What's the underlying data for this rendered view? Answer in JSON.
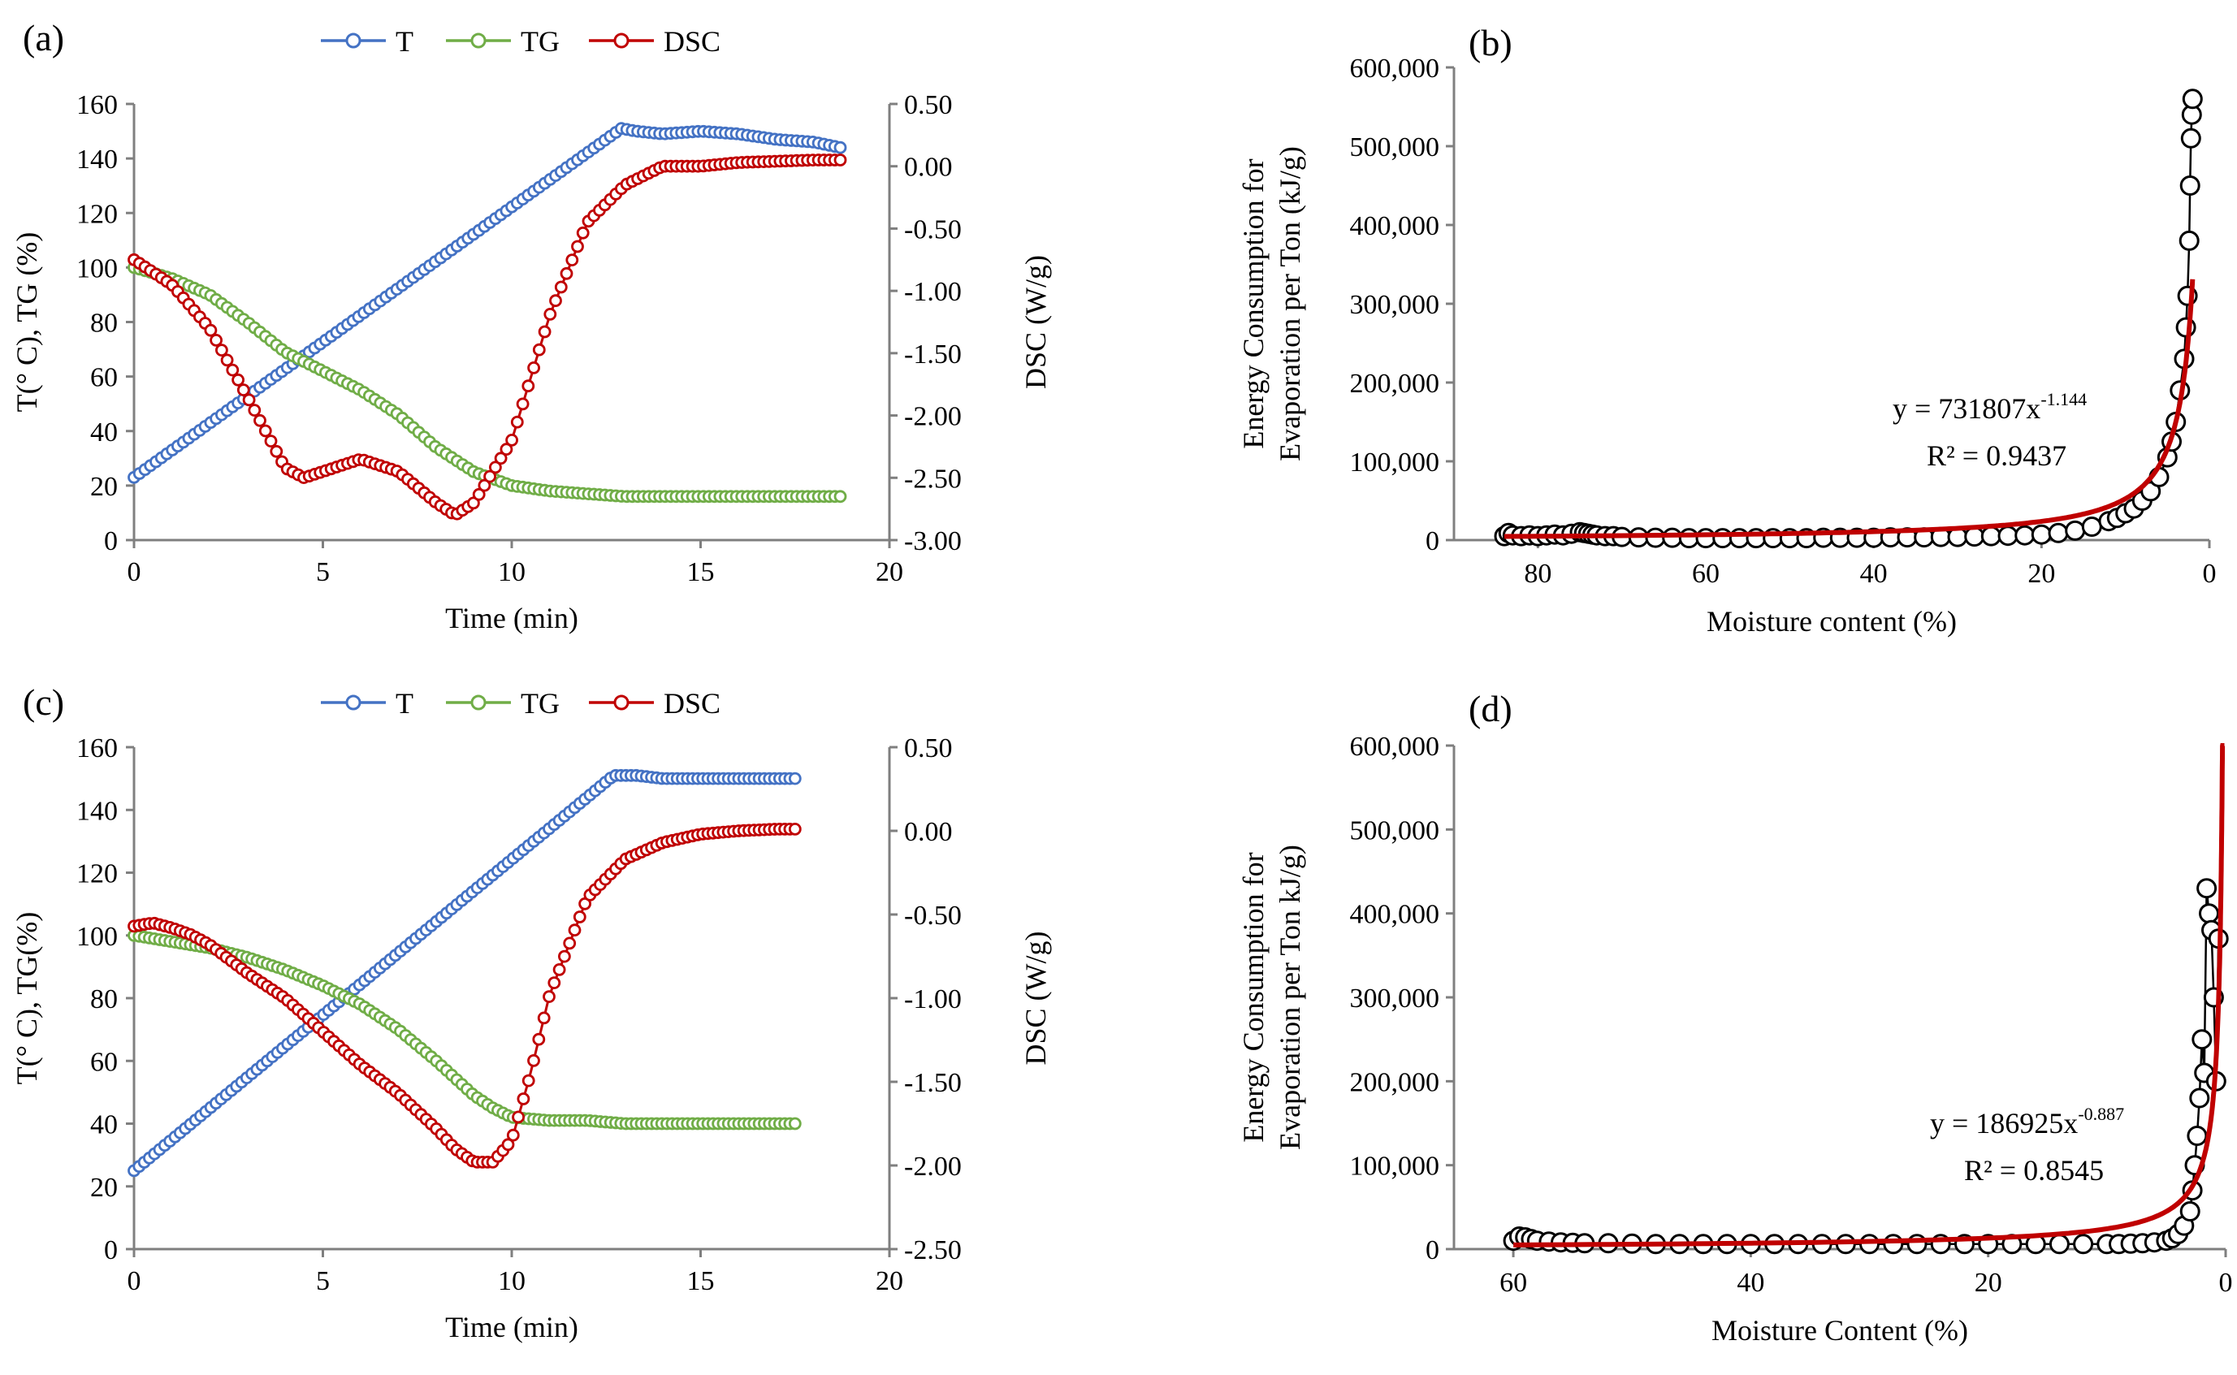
{
  "chart_data": [
    {
      "type": "line",
      "panel_label": "(a)",
      "legend": [
        "T",
        "TG",
        "DSC"
      ],
      "xlabel": "Time (min)",
      "ylabel_left": "T(° C), TG (%)",
      "ylabel_right": "DSC (W/g)",
      "xlim": [
        0,
        20
      ],
      "ylim_left": [
        0,
        160
      ],
      "ylim_right": [
        -3.0,
        0.5
      ],
      "x_ticks": [
        "0",
        "5",
        "10",
        "15",
        "20"
      ],
      "y_left_ticks": [
        "0",
        "20",
        "40",
        "60",
        "80",
        "100",
        "120",
        "140",
        "160"
      ],
      "y_right_ticks": [
        "-3.00",
        "-2.50",
        "-2.00",
        "-1.50",
        "-1.00",
        "-0.50",
        "0.00",
        "0.50"
      ],
      "colors": {
        "T": "#4472c4",
        "TG": "#70ad47",
        "DSC": "#c00000"
      },
      "series": [
        {
          "name": "T",
          "axis": "left",
          "x": [
            0,
            12.9,
            13.3,
            14,
            15,
            16,
            17,
            18,
            18.7
          ],
          "y": [
            23,
            151,
            150,
            149,
            150,
            149,
            147,
            146,
            144
          ]
        },
        {
          "name": "TG",
          "axis": "left",
          "x": [
            0,
            1,
            2,
            3,
            4,
            5,
            6,
            7,
            8,
            9,
            10,
            11,
            12,
            13,
            15,
            18.7
          ],
          "y": [
            100,
            96,
            90,
            80,
            69,
            62,
            55,
            46,
            34,
            25,
            20,
            18,
            17,
            16,
            16,
            16
          ]
        },
        {
          "name": "DSC",
          "axis": "right",
          "x": [
            0,
            1,
            2,
            3,
            4,
            4.5,
            5,
            6,
            7,
            8,
            8.5,
            9,
            10,
            11,
            12,
            13,
            14,
            15,
            16,
            17,
            18,
            18.7
          ],
          "y": [
            -0.75,
            -0.95,
            -1.3,
            -1.85,
            -2.42,
            -2.5,
            -2.45,
            -2.35,
            -2.45,
            -2.7,
            -2.8,
            -2.7,
            -2.2,
            -1.2,
            -0.45,
            -0.15,
            0.0,
            0.0,
            0.03,
            0.04,
            0.05,
            0.05
          ]
        }
      ]
    },
    {
      "type": "scatter",
      "panel_label": "(b)",
      "xlabel": "Moisture content (%)",
      "ylabel_line1": "Energy Consumption for",
      "ylabel_line2": "Evaporation per Ton (kJ/g)",
      "x_reversed": true,
      "xlim": [
        90,
        0
      ],
      "ylim": [
        0,
        600000
      ],
      "x_ticks": [
        "80",
        "60",
        "40",
        "20",
        "0"
      ],
      "y_ticks": [
        "0",
        "100,000",
        "200,000",
        "300,000",
        "400,000",
        "500,000",
        "600,000"
      ],
      "equation_main": "y = 731807x",
      "equation_exp": "-1.144",
      "r2": "R² = 0.9437",
      "fit": {
        "a": 731807,
        "b": -1.144,
        "x_min": 2
      },
      "points_x": [
        84,
        83.5,
        83,
        82,
        81,
        80,
        79,
        78,
        77,
        76,
        75,
        74.5,
        74,
        73.5,
        73,
        72,
        71,
        70,
        68,
        66,
        64,
        62,
        60,
        58,
        56,
        54,
        52,
        50,
        48,
        46,
        44,
        42,
        40,
        38,
        36,
        34,
        32,
        30,
        28,
        26,
        24,
        22,
        20,
        18,
        16,
        14,
        12,
        11,
        10,
        9,
        8,
        7,
        6,
        5,
        4.5,
        4,
        3.5,
        3,
        2.8,
        2.6,
        2.4,
        2.3,
        2.2,
        2.1,
        2.0
      ],
      "points_y": [
        5000,
        9000,
        6000,
        5000,
        6000,
        5000,
        6000,
        7000,
        6000,
        8000,
        10000,
        9000,
        8000,
        7000,
        6000,
        5000,
        5000,
        4000,
        3500,
        3000,
        3000,
        2500,
        2500,
        2500,
        2500,
        2500,
        2500,
        2500,
        2500,
        3000,
        3000,
        3000,
        3000,
        3500,
        3500,
        3500,
        4000,
        4000,
        4500,
        5000,
        5500,
        6000,
        7000,
        9000,
        12000,
        17000,
        24000,
        28000,
        34000,
        40000,
        50000,
        62000,
        80000,
        105000,
        125000,
        150000,
        190000,
        230000,
        270000,
        310000,
        380000,
        450000,
        510000,
        540000,
        560000
      ]
    },
    {
      "type": "line",
      "panel_label": "(c)",
      "legend": [
        "T",
        "TG",
        "DSC"
      ],
      "xlabel": "Time (min)",
      "ylabel_left": "T(° C), TG(%)",
      "ylabel_right": "DSC (W/g)",
      "xlim": [
        0,
        20
      ],
      "ylim_left": [
        0,
        160
      ],
      "ylim_right": [
        -2.5,
        0.5
      ],
      "x_ticks": [
        "0",
        "5",
        "10",
        "15",
        "20"
      ],
      "y_left_ticks": [
        "0",
        "20",
        "40",
        "60",
        "80",
        "100",
        "120",
        "140",
        "160"
      ],
      "y_right_ticks": [
        "-2.50",
        "-2.00",
        "-1.50",
        "-1.00",
        "-0.50",
        "0.00",
        "0.50"
      ],
      "colors": {
        "T": "#4472c4",
        "TG": "#70ad47",
        "DSC": "#c00000"
      },
      "series": [
        {
          "name": "T",
          "axis": "left",
          "x": [
            0,
            12.7,
            13.3,
            14,
            15,
            16,
            17,
            17.5
          ],
          "y": [
            25,
            151,
            151,
            150,
            150,
            150,
            150,
            150
          ]
        },
        {
          "name": "TG",
          "axis": "left",
          "x": [
            0,
            1,
            2,
            3,
            4,
            5,
            6,
            7,
            8,
            9,
            9.5,
            10,
            11,
            12,
            13,
            15,
            17.5
          ],
          "y": [
            100,
            98,
            96,
            93,
            89,
            84,
            78,
            70,
            60,
            49,
            45,
            42,
            41,
            41,
            40,
            40,
            40
          ]
        },
        {
          "name": "DSC",
          "axis": "right",
          "x": [
            0,
            0.5,
            1,
            1.5,
            2,
            3,
            4,
            5,
            6,
            7,
            8,
            8.5,
            9,
            9.5,
            10,
            10.5,
            11,
            12,
            13,
            14,
            15,
            16,
            17,
            17.5
          ],
          "y": [
            -0.57,
            -0.55,
            -0.58,
            -0.62,
            -0.68,
            -0.85,
            -1.0,
            -1.2,
            -1.4,
            -1.57,
            -1.78,
            -1.9,
            -1.98,
            -1.98,
            -1.85,
            -1.45,
            -0.98,
            -0.4,
            -0.17,
            -0.07,
            -0.02,
            0.0,
            0.01,
            0.01
          ]
        }
      ]
    },
    {
      "type": "scatter",
      "panel_label": "(d)",
      "xlabel": "Moisture Content (%)",
      "ylabel_line1": "Energy Consumption for",
      "ylabel_line2": "Evaporation per Ton kJ/g)",
      "x_reversed": true,
      "xlim": [
        65,
        0
      ],
      "ylim": [
        0,
        600000
      ],
      "x_ticks": [
        "60",
        "40",
        "20",
        "0"
      ],
      "y_ticks": [
        "0",
        "100,000",
        "200,000",
        "300,000",
        "400,000",
        "500,000",
        "600,000"
      ],
      "equation_main": "y = 186925x",
      "equation_exp": "-0.887",
      "r2": "R² = 0.8545",
      "fit": {
        "a": 186925,
        "b": -0.887,
        "x_min": 0.1
      },
      "points_x": [
        60,
        59.5,
        59,
        58.5,
        58,
        57,
        56,
        55,
        54,
        52,
        50,
        48,
        46,
        44,
        42,
        40,
        38,
        36,
        34,
        32,
        30,
        28,
        26,
        24,
        22,
        20,
        18,
        16,
        14,
        12,
        10,
        9,
        8,
        7,
        6,
        5,
        4.5,
        4,
        3.5,
        3,
        2.8,
        2.6,
        2.4,
        2.2,
        2.0,
        1.8,
        1.6,
        1.4,
        1.2,
        1.0,
        0.8,
        0.6
      ],
      "points_y": [
        10000,
        15000,
        14000,
        12000,
        10000,
        9000,
        8000,
        7500,
        7000,
        7000,
        6500,
        6000,
        6000,
        6000,
        6000,
        6000,
        6000,
        6000,
        6000,
        6000,
        6000,
        6000,
        6000,
        6000,
        6000,
        6000,
        6000,
        6000,
        6000,
        6000,
        6000,
        6000,
        6500,
        7000,
        8000,
        10000,
        13000,
        18000,
        28000,
        45000,
        70000,
        100000,
        135000,
        180000,
        250000,
        210000,
        430000,
        400000,
        380000,
        300000,
        200000,
        370000
      ]
    }
  ]
}
